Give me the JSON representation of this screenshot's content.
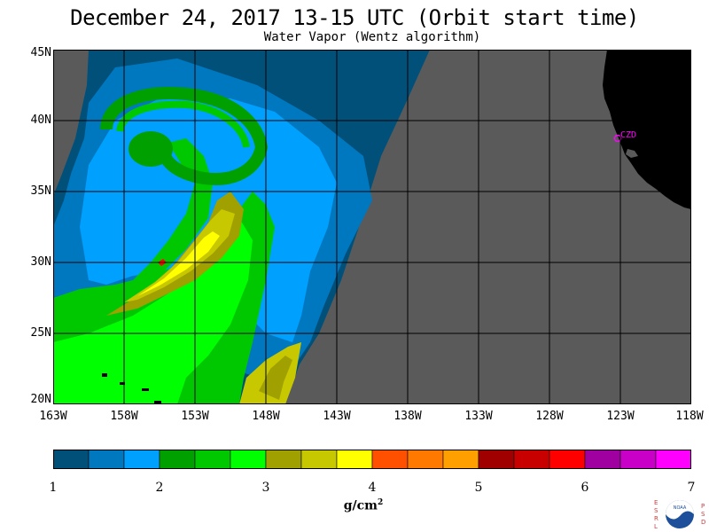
{
  "title": "December 24, 2017  13-15 UTC  (Orbit start time)",
  "subtitle": "Water Vapor (Wentz algorithm)",
  "lat_ticks": [
    "45N",
    "40N",
    "35N",
    "30N",
    "25N",
    "20N"
  ],
  "lon_ticks": [
    "163W",
    "158W",
    "153W",
    "148W",
    "143W",
    "138W",
    "133W",
    "128W",
    "123W",
    "118W"
  ],
  "station_label": "CZD",
  "colorbar": {
    "labels": [
      "1",
      "2",
      "3",
      "4",
      "5",
      "6",
      "7"
    ],
    "unit_base": "g/cm",
    "unit_exp": "2",
    "colors": [
      "#00507a",
      "#0078c0",
      "#00a0ff",
      "#00a000",
      "#00c800",
      "#00ff00",
      "#a0a000",
      "#c8c800",
      "#ffff00",
      "#ff5000",
      "#ff7800",
      "#ffa000",
      "#a00000",
      "#c80000",
      "#ff0000",
      "#a000a0",
      "#c800c8",
      "#ff00ff"
    ]
  },
  "logo": {
    "left_letters": "ESRL",
    "right_letters": "PSD",
    "text": "NOAA"
  },
  "map_colors": {
    "no_data": "#5a5a5a",
    "land": "#000000",
    "grid": "#000000",
    "station": "#ff00ff"
  }
}
